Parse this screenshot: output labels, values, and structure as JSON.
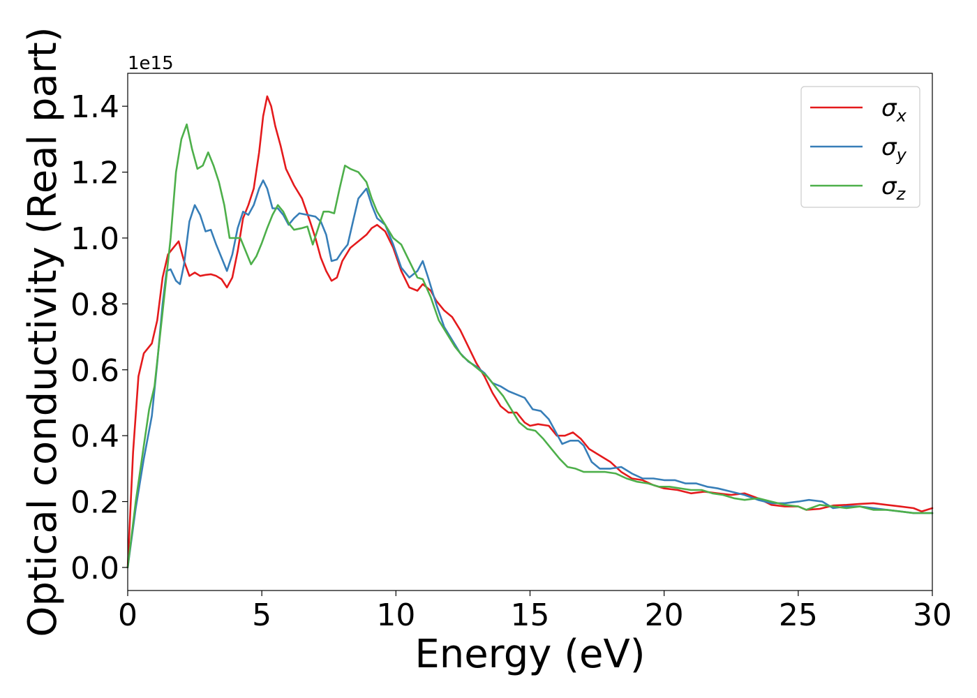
{
  "chart_data": {
    "type": "line",
    "title": "",
    "xlabel": "Energy (eV)",
    "ylabel": "Optical conductivity (Real part)",
    "y_offset_text": "1e15",
    "y_scale_factor": 1000000000000000.0,
    "xlim": [
      0,
      30
    ],
    "ylim": [
      -0.07,
      1.5
    ],
    "xticks": [
      0,
      5,
      10,
      15,
      20,
      25,
      30
    ],
    "yticks": [
      0.0,
      0.2,
      0.4,
      0.6,
      0.8,
      1.0,
      1.2,
      1.4
    ],
    "ytick_labels": [
      "0.0",
      "0.2",
      "0.4",
      "0.6",
      "0.8",
      "1.0",
      "1.2",
      "1.4"
    ],
    "grid": false,
    "legend_position": "top-right",
    "series": [
      {
        "name": "σx",
        "name_base": "σ",
        "name_sub": "x",
        "color": "#e41a1c",
        "points": [
          [
            0,
            0
          ],
          [
            0.2,
            0.35
          ],
          [
            0.4,
            0.58
          ],
          [
            0.6,
            0.65
          ],
          [
            0.9,
            0.68
          ],
          [
            1.1,
            0.75
          ],
          [
            1.3,
            0.88
          ],
          [
            1.5,
            0.95
          ],
          [
            1.7,
            0.97
          ],
          [
            1.9,
            0.99
          ],
          [
            2.1,
            0.93
          ],
          [
            2.3,
            0.885
          ],
          [
            2.5,
            0.895
          ],
          [
            2.7,
            0.885
          ],
          [
            2.9,
            0.888
          ],
          [
            3.1,
            0.89
          ],
          [
            3.3,
            0.885
          ],
          [
            3.5,
            0.875
          ],
          [
            3.7,
            0.85
          ],
          [
            3.9,
            0.88
          ],
          [
            4.1,
            0.96
          ],
          [
            4.3,
            1.06
          ],
          [
            4.5,
            1.1
          ],
          [
            4.7,
            1.15
          ],
          [
            4.9,
            1.26
          ],
          [
            5.05,
            1.37
          ],
          [
            5.2,
            1.43
          ],
          [
            5.35,
            1.4
          ],
          [
            5.5,
            1.34
          ],
          [
            5.7,
            1.28
          ],
          [
            5.9,
            1.21
          ],
          [
            6.2,
            1.16
          ],
          [
            6.5,
            1.12
          ],
          [
            6.8,
            1.05
          ],
          [
            7.0,
            1.0
          ],
          [
            7.2,
            0.94
          ],
          [
            7.4,
            0.9
          ],
          [
            7.6,
            0.87
          ],
          [
            7.8,
            0.88
          ],
          [
            8.0,
            0.93
          ],
          [
            8.3,
            0.97
          ],
          [
            8.6,
            0.99
          ],
          [
            8.9,
            1.01
          ],
          [
            9.1,
            1.03
          ],
          [
            9.3,
            1.04
          ],
          [
            9.6,
            1.02
          ],
          [
            9.9,
            0.97
          ],
          [
            10.2,
            0.9
          ],
          [
            10.5,
            0.85
          ],
          [
            10.8,
            0.84
          ],
          [
            11.0,
            0.86
          ],
          [
            11.3,
            0.84
          ],
          [
            11.5,
            0.81
          ],
          [
            11.8,
            0.78
          ],
          [
            12.1,
            0.76
          ],
          [
            12.4,
            0.72
          ],
          [
            12.7,
            0.67
          ],
          [
            13.0,
            0.62
          ],
          [
            13.3,
            0.58
          ],
          [
            13.6,
            0.53
          ],
          [
            13.9,
            0.49
          ],
          [
            14.2,
            0.47
          ],
          [
            14.5,
            0.47
          ],
          [
            14.8,
            0.44
          ],
          [
            15.0,
            0.43
          ],
          [
            15.3,
            0.435
          ],
          [
            15.7,
            0.43
          ],
          [
            16.0,
            0.4
          ],
          [
            16.3,
            0.4
          ],
          [
            16.6,
            0.41
          ],
          [
            16.9,
            0.39
          ],
          [
            17.2,
            0.36
          ],
          [
            17.6,
            0.34
          ],
          [
            18.0,
            0.32
          ],
          [
            18.4,
            0.29
          ],
          [
            18.8,
            0.27
          ],
          [
            19.2,
            0.265
          ],
          [
            19.6,
            0.25
          ],
          [
            20.0,
            0.24
          ],
          [
            20.5,
            0.235
          ],
          [
            21.0,
            0.225
          ],
          [
            21.5,
            0.23
          ],
          [
            22.0,
            0.225
          ],
          [
            22.5,
            0.22
          ],
          [
            23.0,
            0.225
          ],
          [
            23.5,
            0.21
          ],
          [
            24.0,
            0.19
          ],
          [
            24.5,
            0.185
          ],
          [
            25.0,
            0.185
          ],
          [
            25.3,
            0.175
          ],
          [
            25.8,
            0.178
          ],
          [
            26.3,
            0.188
          ],
          [
            26.8,
            0.19
          ],
          [
            27.3,
            0.193
          ],
          [
            27.8,
            0.195
          ],
          [
            28.3,
            0.19
          ],
          [
            28.8,
            0.185
          ],
          [
            29.3,
            0.18
          ],
          [
            29.6,
            0.17
          ],
          [
            30.0,
            0.18
          ]
        ]
      },
      {
        "name": "σy",
        "name_base": "σ",
        "name_sub": "y",
        "color": "#377eb8",
        "points": [
          [
            0,
            0
          ],
          [
            0.3,
            0.18
          ],
          [
            0.6,
            0.33
          ],
          [
            0.9,
            0.46
          ],
          [
            1.1,
            0.62
          ],
          [
            1.3,
            0.8
          ],
          [
            1.45,
            0.9
          ],
          [
            1.6,
            0.905
          ],
          [
            1.8,
            0.87
          ],
          [
            1.95,
            0.86
          ],
          [
            2.1,
            0.92
          ],
          [
            2.3,
            1.05
          ],
          [
            2.5,
            1.1
          ],
          [
            2.7,
            1.07
          ],
          [
            2.9,
            1.02
          ],
          [
            3.1,
            1.025
          ],
          [
            3.3,
            0.98
          ],
          [
            3.5,
            0.94
          ],
          [
            3.7,
            0.9
          ],
          [
            3.9,
            0.95
          ],
          [
            4.1,
            1.03
          ],
          [
            4.3,
            1.08
          ],
          [
            4.5,
            1.07
          ],
          [
            4.7,
            1.1
          ],
          [
            4.9,
            1.15
          ],
          [
            5.05,
            1.175
          ],
          [
            5.2,
            1.15
          ],
          [
            5.4,
            1.09
          ],
          [
            5.6,
            1.09
          ],
          [
            5.8,
            1.07
          ],
          [
            6.0,
            1.04
          ],
          [
            6.2,
            1.06
          ],
          [
            6.4,
            1.075
          ],
          [
            6.7,
            1.07
          ],
          [
            7.0,
            1.065
          ],
          [
            7.2,
            1.05
          ],
          [
            7.4,
            1.01
          ],
          [
            7.6,
            0.93
          ],
          [
            7.8,
            0.935
          ],
          [
            8.0,
            0.96
          ],
          [
            8.2,
            0.98
          ],
          [
            8.4,
            1.05
          ],
          [
            8.6,
            1.12
          ],
          [
            8.9,
            1.15
          ],
          [
            9.1,
            1.1
          ],
          [
            9.3,
            1.06
          ],
          [
            9.6,
            1.04
          ],
          [
            9.9,
            0.98
          ],
          [
            10.2,
            0.91
          ],
          [
            10.5,
            0.88
          ],
          [
            10.8,
            0.9
          ],
          [
            11.0,
            0.93
          ],
          [
            11.2,
            0.88
          ],
          [
            11.5,
            0.8
          ],
          [
            11.8,
            0.73
          ],
          [
            12.1,
            0.69
          ],
          [
            12.4,
            0.65
          ],
          [
            12.7,
            0.625
          ],
          [
            13.0,
            0.61
          ],
          [
            13.3,
            0.59
          ],
          [
            13.6,
            0.56
          ],
          [
            13.9,
            0.55
          ],
          [
            14.2,
            0.535
          ],
          [
            14.5,
            0.525
          ],
          [
            14.8,
            0.515
          ],
          [
            15.1,
            0.48
          ],
          [
            15.4,
            0.475
          ],
          [
            15.7,
            0.45
          ],
          [
            15.9,
            0.42
          ],
          [
            16.2,
            0.375
          ],
          [
            16.5,
            0.385
          ],
          [
            16.8,
            0.385
          ],
          [
            17.0,
            0.37
          ],
          [
            17.3,
            0.32
          ],
          [
            17.6,
            0.3
          ],
          [
            18.0,
            0.3
          ],
          [
            18.4,
            0.305
          ],
          [
            18.8,
            0.285
          ],
          [
            19.2,
            0.27
          ],
          [
            19.6,
            0.27
          ],
          [
            20.0,
            0.265
          ],
          [
            20.4,
            0.265
          ],
          [
            20.8,
            0.255
          ],
          [
            21.2,
            0.255
          ],
          [
            21.6,
            0.245
          ],
          [
            22.0,
            0.24
          ],
          [
            22.5,
            0.23
          ],
          [
            23.0,
            0.22
          ],
          [
            23.5,
            0.205
          ],
          [
            24.0,
            0.195
          ],
          [
            24.5,
            0.195
          ],
          [
            25.0,
            0.2
          ],
          [
            25.4,
            0.205
          ],
          [
            25.9,
            0.2
          ],
          [
            26.3,
            0.18
          ],
          [
            26.8,
            0.185
          ],
          [
            27.3,
            0.185
          ],
          [
            27.8,
            0.18
          ],
          [
            28.3,
            0.175
          ],
          [
            28.8,
            0.17
          ],
          [
            29.3,
            0.165
          ],
          [
            29.6,
            0.165
          ],
          [
            30.0,
            0.165
          ]
        ]
      },
      {
        "name": "σz",
        "name_base": "σ",
        "name_sub": "z",
        "color": "#4daf4a",
        "points": [
          [
            0,
            0
          ],
          [
            0.3,
            0.2
          ],
          [
            0.6,
            0.37
          ],
          [
            0.8,
            0.48
          ],
          [
            1.0,
            0.55
          ],
          [
            1.2,
            0.7
          ],
          [
            1.4,
            0.85
          ],
          [
            1.6,
            1.0
          ],
          [
            1.8,
            1.2
          ],
          [
            2.0,
            1.3
          ],
          [
            2.2,
            1.345
          ],
          [
            2.4,
            1.27
          ],
          [
            2.6,
            1.21
          ],
          [
            2.8,
            1.22
          ],
          [
            3.0,
            1.26
          ],
          [
            3.2,
            1.22
          ],
          [
            3.4,
            1.17
          ],
          [
            3.6,
            1.1
          ],
          [
            3.8,
            1.0
          ],
          [
            4.0,
            1.0
          ],
          [
            4.2,
            1.0
          ],
          [
            4.4,
            0.96
          ],
          [
            4.6,
            0.92
          ],
          [
            4.8,
            0.945
          ],
          [
            5.0,
            0.985
          ],
          [
            5.2,
            1.03
          ],
          [
            5.4,
            1.07
          ],
          [
            5.6,
            1.1
          ],
          [
            5.8,
            1.08
          ],
          [
            6.0,
            1.045
          ],
          [
            6.2,
            1.025
          ],
          [
            6.5,
            1.03
          ],
          [
            6.7,
            1.035
          ],
          [
            6.9,
            0.98
          ],
          [
            7.1,
            1.03
          ],
          [
            7.3,
            1.08
          ],
          [
            7.5,
            1.08
          ],
          [
            7.7,
            1.075
          ],
          [
            7.9,
            1.15
          ],
          [
            8.1,
            1.22
          ],
          [
            8.3,
            1.21
          ],
          [
            8.6,
            1.2
          ],
          [
            8.9,
            1.17
          ],
          [
            9.1,
            1.12
          ],
          [
            9.3,
            1.08
          ],
          [
            9.6,
            1.04
          ],
          [
            9.9,
            1.0
          ],
          [
            10.2,
            0.98
          ],
          [
            10.5,
            0.93
          ],
          [
            10.8,
            0.88
          ],
          [
            11.0,
            0.875
          ],
          [
            11.3,
            0.82
          ],
          [
            11.6,
            0.75
          ],
          [
            11.9,
            0.71
          ],
          [
            12.2,
            0.67
          ],
          [
            12.5,
            0.64
          ],
          [
            12.8,
            0.62
          ],
          [
            13.1,
            0.6
          ],
          [
            13.4,
            0.58
          ],
          [
            13.7,
            0.55
          ],
          [
            14.0,
            0.52
          ],
          [
            14.3,
            0.48
          ],
          [
            14.6,
            0.44
          ],
          [
            14.9,
            0.42
          ],
          [
            15.2,
            0.415
          ],
          [
            15.5,
            0.39
          ],
          [
            15.8,
            0.36
          ],
          [
            16.1,
            0.33
          ],
          [
            16.4,
            0.305
          ],
          [
            16.7,
            0.3
          ],
          [
            17.0,
            0.29
          ],
          [
            17.4,
            0.29
          ],
          [
            17.8,
            0.29
          ],
          [
            18.2,
            0.285
          ],
          [
            18.6,
            0.27
          ],
          [
            19.0,
            0.26
          ],
          [
            19.4,
            0.255
          ],
          [
            19.8,
            0.245
          ],
          [
            20.2,
            0.245
          ],
          [
            20.6,
            0.24
          ],
          [
            21.0,
            0.235
          ],
          [
            21.4,
            0.235
          ],
          [
            21.8,
            0.225
          ],
          [
            22.2,
            0.22
          ],
          [
            22.6,
            0.21
          ],
          [
            23.0,
            0.205
          ],
          [
            23.5,
            0.21
          ],
          [
            24.0,
            0.2
          ],
          [
            24.5,
            0.19
          ],
          [
            25.0,
            0.185
          ],
          [
            25.3,
            0.175
          ],
          [
            25.8,
            0.19
          ],
          [
            26.3,
            0.185
          ],
          [
            26.8,
            0.18
          ],
          [
            27.3,
            0.185
          ],
          [
            27.8,
            0.175
          ],
          [
            28.3,
            0.175
          ],
          [
            28.8,
            0.17
          ],
          [
            29.3,
            0.165
          ],
          [
            29.6,
            0.165
          ],
          [
            30.0,
            0.165
          ]
        ]
      }
    ]
  }
}
